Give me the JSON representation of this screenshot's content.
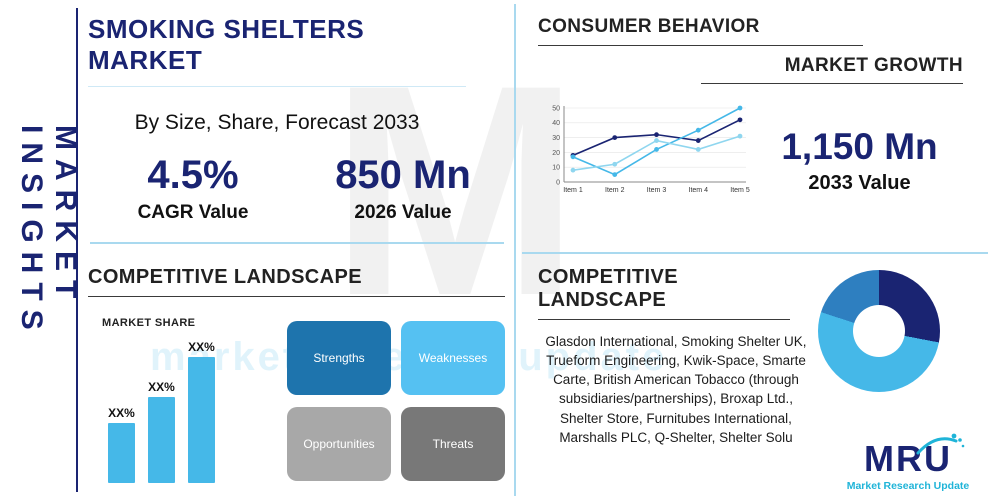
{
  "colors": {
    "navy": "#1a2472",
    "cyan": "#45b8e8",
    "divider_blue": "#a9d9ef",
    "teal": "#1fb4d8",
    "swot_strengths": "#1e74ad",
    "swot_weaknesses": "#55c1f2",
    "swot_opportunities": "#a8a8a8",
    "swot_threats": "#787878"
  },
  "sidebar": {
    "label": "MARKET INSIGHTS"
  },
  "top_left": {
    "title": "SMOKING SHELTERS MARKET",
    "subtitle": "By Size, Share, Forecast 2033",
    "stats": [
      {
        "value": "4.5%",
        "label": "CAGR Value"
      },
      {
        "value": "850 Mn",
        "label": "2026 Value"
      }
    ]
  },
  "top_right": {
    "heading": "CONSUMER BEHAVIOR",
    "subheading": "MARKET GROWTH",
    "stat": {
      "value": "1,150 Mn",
      "label": "2033 Value"
    }
  },
  "bottom_left": {
    "heading": "COMPETITIVE LANDSCAPE",
    "swot": [
      "Strengths",
      "Weaknesses",
      "Opportunities",
      "Threats"
    ]
  },
  "bottom_right": {
    "heading": "COMPETITIVE LANDSCAPE",
    "companies": "Glasdon International, Smoking Shelter UK, Trueform Engineering, Kwik-Space, Smarte Carte, British American Tobacco (through subsidiaries/partnerships), Broxap Ltd., Shelter Store, Furnitubes International, Marshalls PLC, Q-Shelter, Shelter Solu"
  },
  "logo": {
    "name": "MRU",
    "tagline": "Market Research Update"
  },
  "watermark": {
    "letter": "M",
    "text": "market research update"
  },
  "chart_data": [
    {
      "id": "consumer-behavior-line",
      "type": "line",
      "categories": [
        "Item 1",
        "Item 2",
        "Item 3",
        "Item 4",
        "Item 5"
      ],
      "series": [
        {
          "name": "series-1",
          "color": "#1a2472",
          "values": [
            18,
            30,
            32,
            28,
            42
          ]
        },
        {
          "name": "series-2",
          "color": "#45b8e8",
          "values": [
            17,
            5,
            22,
            35,
            50
          ]
        },
        {
          "name": "series-3",
          "color": "#8fd6ef",
          "values": [
            8,
            12,
            28,
            22,
            31
          ]
        }
      ],
      "ylim": [
        0,
        50
      ],
      "yticks": [
        0,
        10,
        20,
        30,
        40,
        50
      ],
      "grid": true,
      "legend": "none"
    },
    {
      "id": "market-share-bars",
      "type": "bar",
      "title": "MARKET SHARE",
      "categories": [
        "",
        "",
        ""
      ],
      "values": [
        30,
        43,
        63
      ],
      "labels": [
        "XX%",
        "XX%",
        "XX%"
      ],
      "color": "#45b8e8"
    },
    {
      "id": "competitive-landscape-donut",
      "type": "pie",
      "donut": true,
      "segments": [
        {
          "name": "segment-1",
          "value": 28,
          "color": "#1a2472"
        },
        {
          "name": "segment-2",
          "value": 52,
          "color": "#45b8e8"
        },
        {
          "name": "segment-3",
          "value": 20,
          "color": "#2e7fc0"
        }
      ]
    }
  ]
}
